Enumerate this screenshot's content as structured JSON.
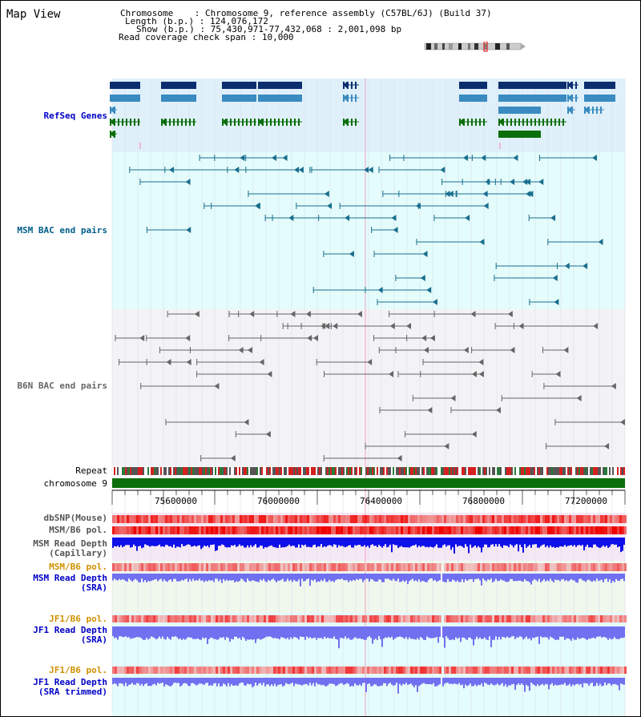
{
  "view": {
    "title": "Map View"
  },
  "info": {
    "chromosome_key": "Chromosome    ",
    "chromosome_value": ": Chromosome 9, reference assembly (C57BL/6J) (Build 37)",
    "length_key": "Length (b.p.)",
    "length_value": ": 124,076,172",
    "show_key": "Show (b.p.)",
    "show_value": ": 75,430,971-77,432,068 : 2,001,098 bp",
    "coverage_key": "Read coverage check span",
    "coverage_value": ": 10,000"
  },
  "tracks": {
    "refseq": "RefSeq Genes",
    "msm_bac": "MSM BAC end pairs",
    "b6n_bac": "B6N BAC end pairs",
    "repeat": "Repeat",
    "chromosome": "chromosome 9",
    "dbsnp": "dbSNP(Mouse)",
    "msm_pol_1": "MSM/B6 pol.",
    "msm_depth_cap_1": "MSM Read Depth",
    "msm_depth_cap_2": "(Capillary)",
    "msm_pol_2": "MSM/B6 pol.",
    "msm_depth_sra_1": "MSM Read Depth",
    "msm_depth_sra_2": "(SRA)",
    "jf1_pol_1": "JF1/B6 pol.",
    "jf1_depth_sra_1": "JF1 Read Depth",
    "jf1_depth_sra_2": "(SRA)",
    "jf1_pol_2": "JF1/B6 pol.",
    "jf1_depth_trim_1": "JF1 Read Depth",
    "jf1_depth_trim_2": "(SRA trimmed)"
  },
  "axis": {
    "ticks": [
      "75600000",
      "76000000",
      "76400000",
      "76800000",
      "77200000"
    ]
  },
  "colors": {
    "refseq_bg": "#dff0fa",
    "msm_bg": "#e4fcfc",
    "b6n_bg": "#f3f3f6",
    "depth_bg": "#f0f8ee",
    "jf1_bg": "#e4fcfc",
    "gene_dark": "#0a2e6e",
    "gene_mid": "#3a8bc0",
    "gene_green": "#0a6e0a",
    "msm_line": "#1a6e8e",
    "b6n_line": "#666666",
    "chrom_green": "#0a6e0a",
    "depth_blue": "#1010e8",
    "depth_light": "#7070f0",
    "label_blue": "#0000c8",
    "label_teal": "#005e8a",
    "label_orange": "#d09000"
  }
}
